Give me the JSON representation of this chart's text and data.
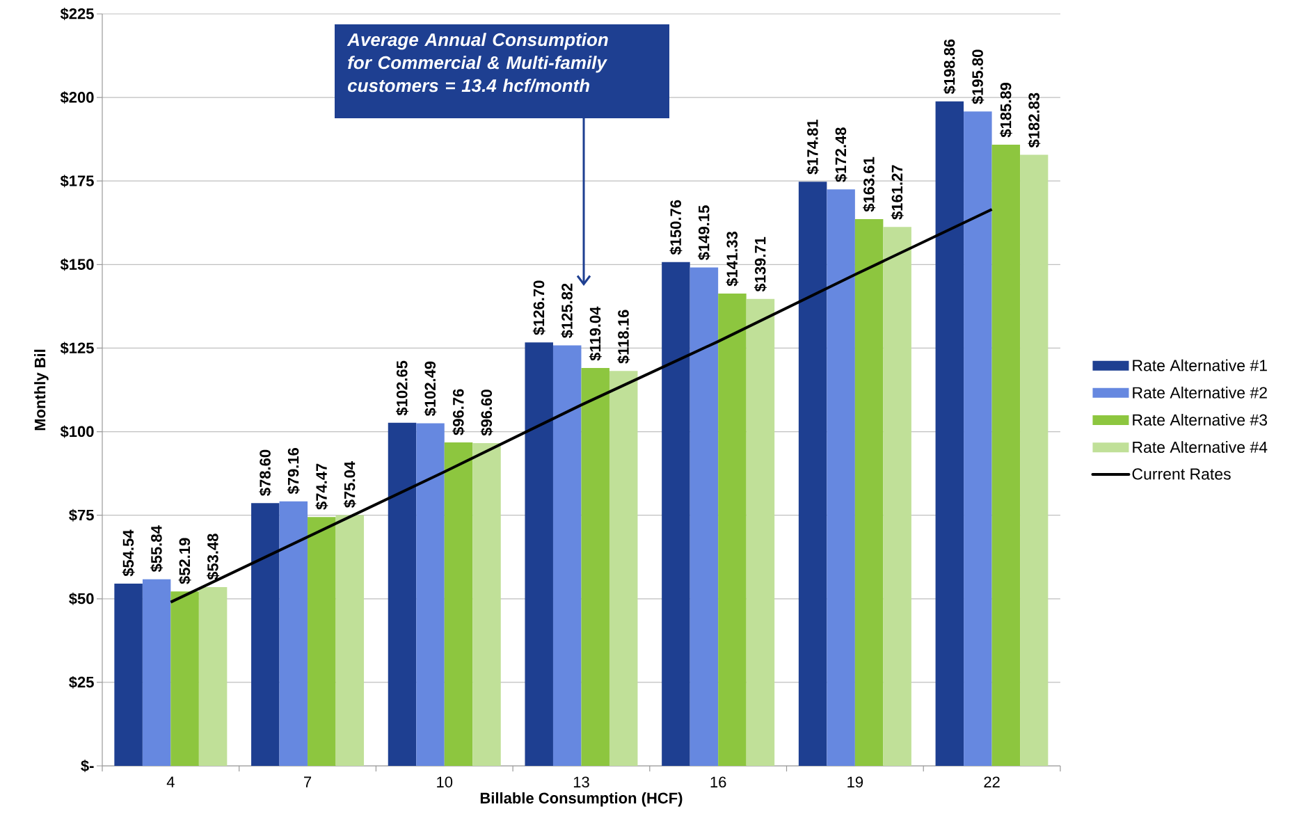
{
  "chart_data": {
    "type": "bar",
    "xlabel": "Billable Consumption (HCF)",
    "ylabel": "Monthly Bil",
    "categories": [
      "4",
      "7",
      "10",
      "13",
      "16",
      "19",
      "22"
    ],
    "ylim": [
      0,
      225
    ],
    "yticks": [
      {
        "value": 0,
        "label": "$-"
      },
      {
        "value": 25,
        "label": "$25"
      },
      {
        "value": 50,
        "label": "$50"
      },
      {
        "value": 75,
        "label": "$75"
      },
      {
        "value": 100,
        "label": "$100"
      },
      {
        "value": 125,
        "label": "$125"
      },
      {
        "value": 150,
        "label": "$150"
      },
      {
        "value": 175,
        "label": "$175"
      },
      {
        "value": 200,
        "label": "$200"
      },
      {
        "value": 225,
        "label": "$225"
      }
    ],
    "grid": "y",
    "legend": "right",
    "series": [
      {
        "name": "Rate Alternative #1",
        "color": "#1e3f91",
        "values": [
          54.54,
          78.6,
          102.65,
          126.7,
          150.76,
          174.81,
          198.86
        ],
        "value_labels": [
          "$54.54",
          "$78.60",
          "$102.65",
          "$126.70",
          "$150.76",
          "$174.81",
          "$198.86"
        ]
      },
      {
        "name": "Rate Alternative #2",
        "color": "#6688e0",
        "values": [
          55.84,
          79.16,
          102.49,
          125.82,
          149.15,
          172.48,
          195.8
        ],
        "value_labels": [
          "$55.84",
          "$79.16",
          "$102.49",
          "$125.82",
          "$149.15",
          "$172.48",
          "$195.80"
        ]
      },
      {
        "name": "Rate Alternative #3",
        "color": "#8dc63f",
        "values": [
          52.19,
          74.47,
          96.76,
          119.04,
          141.33,
          163.61,
          185.89
        ],
        "value_labels": [
          "$52.19",
          "$74.47",
          "$96.76",
          "$119.04",
          "$141.33",
          "$163.61",
          "$185.89"
        ]
      },
      {
        "name": "Rate Alternative #4",
        "color": "#c0e098",
        "values": [
          53.48,
          75.04,
          96.6,
          118.16,
          139.71,
          161.27,
          182.83
        ],
        "value_labels": [
          "$53.48",
          "$75.04",
          "$96.60",
          "$118.16",
          "$139.71",
          "$161.27",
          "$182.83"
        ]
      },
      {
        "name": "Current Rates",
        "type": "line",
        "color": "#000000",
        "values": [
          49,
          68.5,
          88,
          108,
          127,
          147,
          166.5
        ]
      }
    ],
    "annotations": [
      "Average Annual Consumption for Commercial & Multi-family customers = 13.4 hcf/month"
    ]
  }
}
